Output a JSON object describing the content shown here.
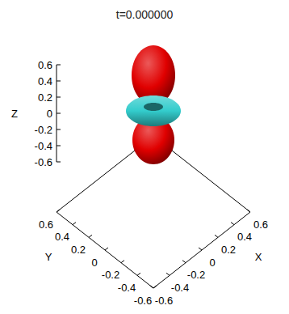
{
  "chart_data": {
    "type": "isosurface3d",
    "title": "t=0.000000",
    "xlabel": "X",
    "ylabel": "Y",
    "zlabel": "Z",
    "xlim": [
      -0.6,
      0.6
    ],
    "ylim": [
      -0.6,
      0.6
    ],
    "zlim": [
      -0.6,
      0.6
    ],
    "xticks": [
      -0.6,
      -0.4,
      -0.2,
      0,
      0.2,
      0.4,
      0.6
    ],
    "yticks": [
      -0.6,
      -0.4,
      -0.2,
      0,
      0.2,
      0.4,
      0.6
    ],
    "zticks": [
      -0.6,
      -0.4,
      -0.2,
      0,
      0.2,
      0.4,
      0.6
    ],
    "colors": [
      "#e00000",
      "#33cccc"
    ]
  }
}
